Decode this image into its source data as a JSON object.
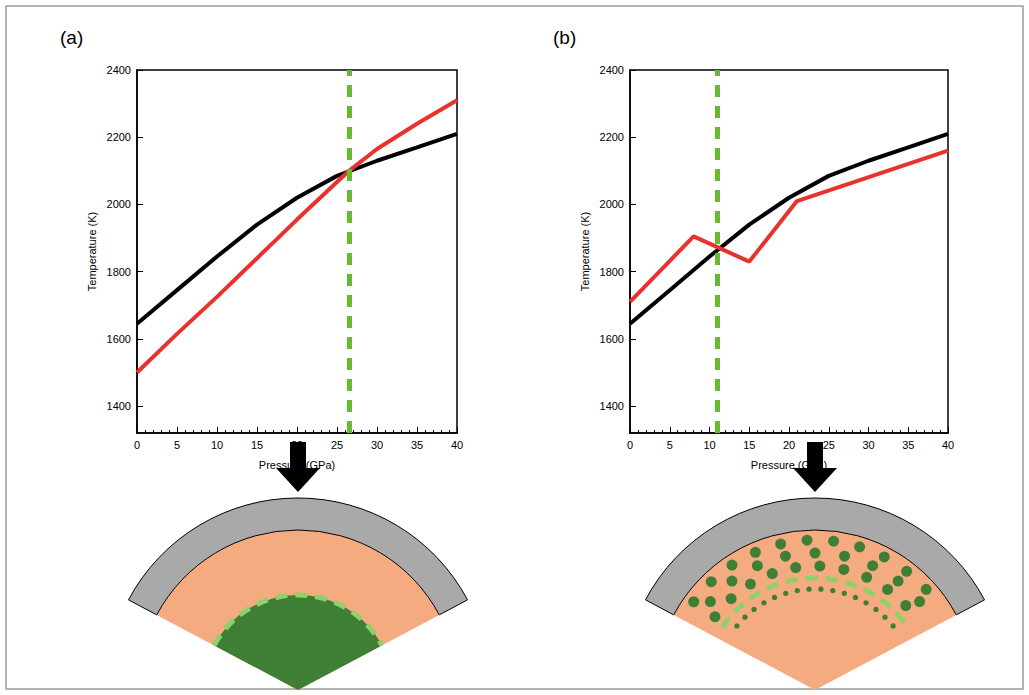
{
  "chart_data": [
    {
      "panel": "(a)",
      "type": "line",
      "x_label": "Pressure (GPa)",
      "y_label": "Temperature (K)",
      "xlim": [
        0,
        40
      ],
      "xticks": [
        0,
        5,
        10,
        15,
        20,
        25,
        30,
        35,
        40
      ],
      "ylim": [
        1320,
        2400
      ],
      "yticks": [
        1400,
        1600,
        1800,
        2000,
        2200,
        2400
      ],
      "grid": false,
      "series": [
        {
          "color": "#000000",
          "x": [
            0,
            5,
            10,
            15,
            20,
            25,
            30,
            35,
            40
          ],
          "values": [
            1645,
            1745,
            1845,
            1940,
            2020,
            2085,
            2130,
            2170,
            2210
          ]
        },
        {
          "color": "#e8322e",
          "x": [
            0,
            5,
            10,
            15,
            20,
            26.5,
            30,
            35,
            40
          ],
          "values": [
            1500,
            1615,
            1725,
            1840,
            1955,
            2100,
            2165,
            2240,
            2310
          ]
        }
      ],
      "vline": {
        "x": 26.5,
        "color": "#66bb33",
        "line_style": "dashed"
      }
    },
    {
      "panel": "(b)",
      "type": "line",
      "x_label": "Pressure (GPa)",
      "y_label": "Temperature (K)",
      "xlim": [
        0,
        40
      ],
      "xticks": [
        0,
        5,
        10,
        15,
        20,
        25,
        30,
        35,
        40
      ],
      "ylim": [
        1320,
        2400
      ],
      "yticks": [
        1400,
        1600,
        1800,
        2000,
        2200,
        2400
      ],
      "grid": false,
      "series": [
        {
          "color": "#000000",
          "x": [
            0,
            5,
            10,
            15,
            20,
            25,
            30,
            35,
            40
          ],
          "values": [
            1645,
            1745,
            1845,
            1940,
            2020,
            2085,
            2130,
            2170,
            2210
          ]
        },
        {
          "color": "#e8322e",
          "x": [
            0,
            8,
            15,
            21,
            40
          ],
          "values": [
            1710,
            1905,
            1830,
            2010,
            2160
          ]
        }
      ],
      "vline": {
        "x": 11,
        "color": "#66bb33",
        "line_style": "dashed"
      }
    }
  ]
}
